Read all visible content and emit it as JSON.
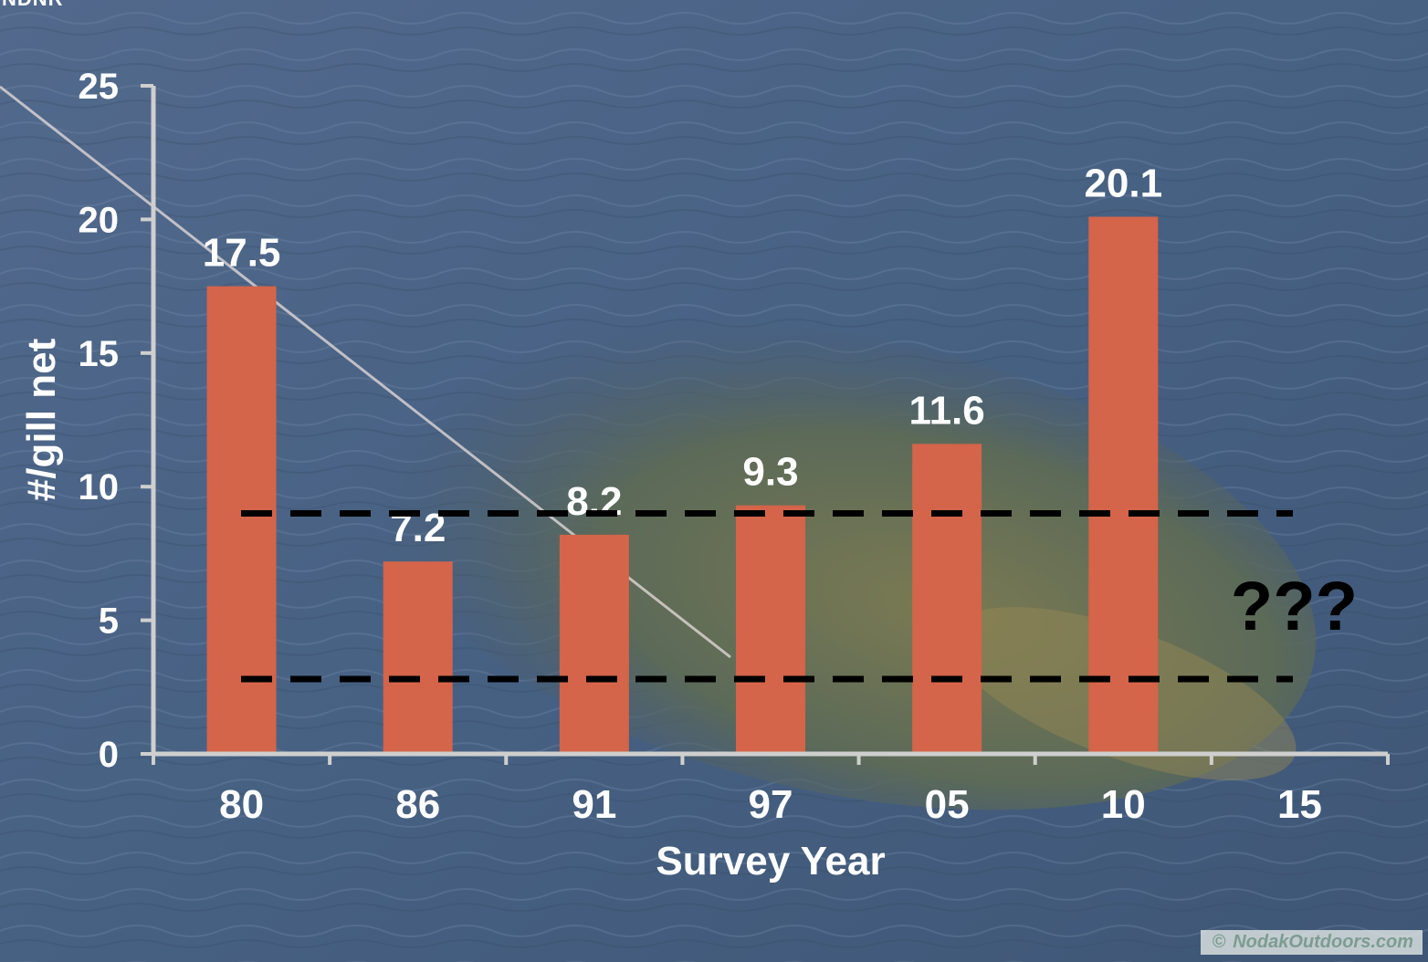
{
  "header_fragment": "NDNR",
  "watermark": {
    "symbol": "©",
    "text": "NodakOutdoors.com"
  },
  "colors": {
    "bar": "#d4644a",
    "axis": "#cfcfcf",
    "text": "#ffffff",
    "threshold": "#000000"
  },
  "chart_data": {
    "type": "bar",
    "categories": [
      "80",
      "86",
      "91",
      "97",
      "05",
      "10",
      "15"
    ],
    "values": [
      17.5,
      7.2,
      8.2,
      9.3,
      11.6,
      20.1,
      null
    ],
    "value_labels": [
      "17.5",
      "7.2",
      "8.2",
      "9.3",
      "11.6",
      "20.1",
      ""
    ],
    "xlabel": "Survey Year",
    "ylabel": "#/gill net",
    "ylim": [
      0,
      25
    ],
    "yticks": [
      0,
      5,
      10,
      15,
      20,
      25
    ],
    "grid": false,
    "reference_lines": [
      {
        "value": 9.0,
        "style": "dashed"
      },
      {
        "value": 2.8,
        "style": "dashed"
      }
    ],
    "annotations": [
      {
        "text": "???",
        "category": "15"
      }
    ]
  }
}
